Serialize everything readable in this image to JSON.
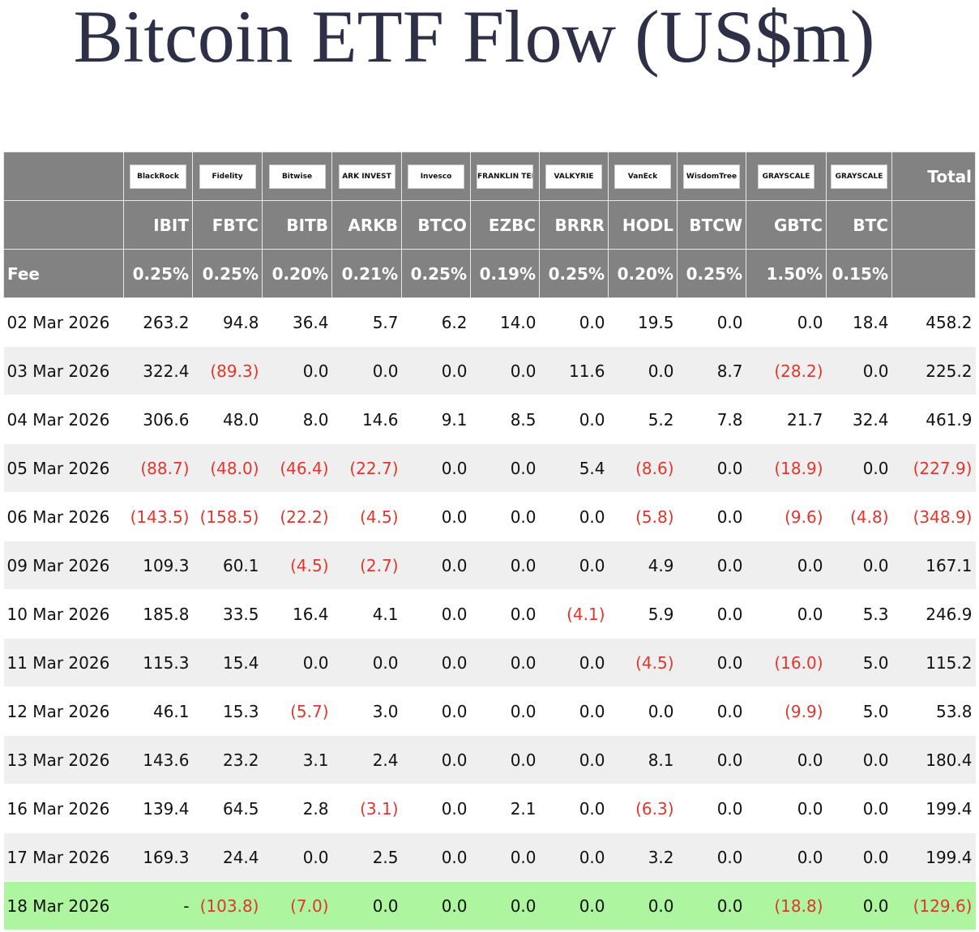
{
  "title": "Bitcoin ETF Flow (US$m)",
  "table": {
    "issuers": [
      "BlackRock",
      "Fidelity",
      "Bitwise",
      "ARK INVEST",
      "Invesco",
      "FRANKLIN TEMPLETON",
      "VALKYRIE",
      "VanEck",
      "WisdomTree",
      "GRAYSCALE",
      "GRAYSCALE"
    ],
    "total_label": "Total",
    "tickers": [
      "IBIT",
      "FBTC",
      "BITB",
      "ARKB",
      "BTCO",
      "EZBC",
      "BRRR",
      "HODL",
      "BTCW",
      "GBTC",
      "BTC"
    ],
    "fee_label": "Fee",
    "fees": [
      "0.25%",
      "0.25%",
      "0.20%",
      "0.21%",
      "0.25%",
      "0.19%",
      "0.25%",
      "0.20%",
      "0.25%",
      "1.50%",
      "0.15%"
    ],
    "rows": [
      [
        "02 Mar 2026",
        "263.2",
        "94.8",
        "36.4",
        "5.7",
        "6.2",
        "14.0",
        "0.0",
        "19.5",
        "0.0",
        "0.0",
        "18.4",
        "458.2"
      ],
      [
        "03 Mar 2026",
        "322.4",
        "(89.3)",
        "0.0",
        "0.0",
        "0.0",
        "0.0",
        "11.6",
        "0.0",
        "8.7",
        "(28.2)",
        "0.0",
        "225.2"
      ],
      [
        "04 Mar 2026",
        "306.6",
        "48.0",
        "8.0",
        "14.6",
        "9.1",
        "8.5",
        "0.0",
        "5.2",
        "7.8",
        "21.7",
        "32.4",
        "461.9"
      ],
      [
        "05 Mar 2026",
        "(88.7)",
        "(48.0)",
        "(46.4)",
        "(22.7)",
        "0.0",
        "0.0",
        "5.4",
        "(8.6)",
        "0.0",
        "(18.9)",
        "0.0",
        "(227.9)"
      ],
      [
        "06 Mar 2026",
        "(143.5)",
        "(158.5)",
        "(22.2)",
        "(4.5)",
        "0.0",
        "0.0",
        "0.0",
        "(5.8)",
        "0.0",
        "(9.6)",
        "(4.8)",
        "(348.9)"
      ],
      [
        "09 Mar 2026",
        "109.3",
        "60.1",
        "(4.5)",
        "(2.7)",
        "0.0",
        "0.0",
        "0.0",
        "4.9",
        "0.0",
        "0.0",
        "0.0",
        "167.1"
      ],
      [
        "10 Mar 2026",
        "185.8",
        "33.5",
        "16.4",
        "4.1",
        "0.0",
        "0.0",
        "(4.1)",
        "5.9",
        "0.0",
        "0.0",
        "5.3",
        "246.9"
      ],
      [
        "11 Mar 2026",
        "115.3",
        "15.4",
        "0.0",
        "0.0",
        "0.0",
        "0.0",
        "0.0",
        "(4.5)",
        "0.0",
        "(16.0)",
        "5.0",
        "115.2"
      ],
      [
        "12 Mar 2026",
        "46.1",
        "15.3",
        "(5.7)",
        "3.0",
        "0.0",
        "0.0",
        "0.0",
        "0.0",
        "0.0",
        "(9.9)",
        "5.0",
        "53.8"
      ],
      [
        "13 Mar 2026",
        "143.6",
        "23.2",
        "3.1",
        "2.4",
        "0.0",
        "0.0",
        "0.0",
        "8.1",
        "0.0",
        "0.0",
        "0.0",
        "180.4"
      ],
      [
        "16 Mar 2026",
        "139.4",
        "64.5",
        "2.8",
        "(3.1)",
        "0.0",
        "2.1",
        "0.0",
        "(6.3)",
        "0.0",
        "0.0",
        "0.0",
        "199.4"
      ],
      [
        "17 Mar 2026",
        "169.3",
        "24.4",
        "0.0",
        "2.5",
        "0.0",
        "0.0",
        "0.0",
        "3.2",
        "0.0",
        "0.0",
        "0.0",
        "199.4"
      ],
      [
        "18 Mar 2026",
        "-",
        "(103.8)",
        "(7.0)",
        "0.0",
        "0.0",
        "0.0",
        "0.0",
        "0.0",
        "0.0",
        "(18.8)",
        "0.0",
        "(129.6)"
      ]
    ]
  }
}
